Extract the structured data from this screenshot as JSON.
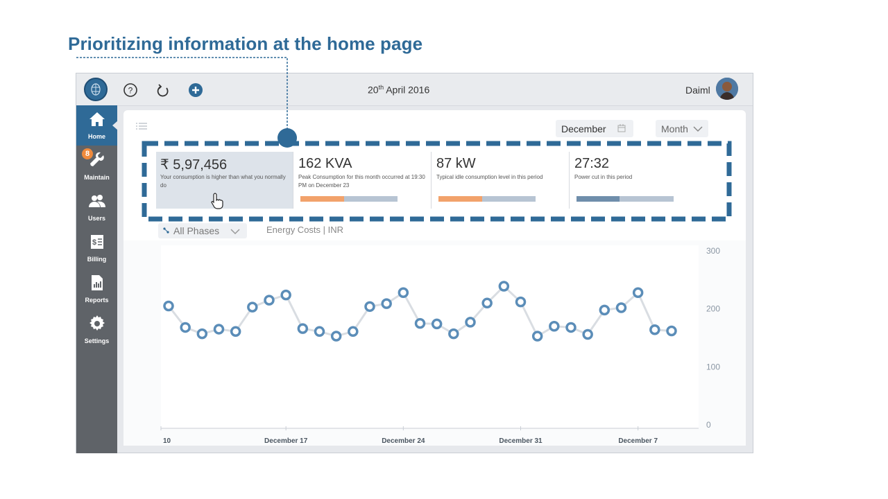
{
  "slide": {
    "title": "Prioritizing information at the home page"
  },
  "topbar": {
    "date_day": "20",
    "date_suffix": "th",
    "date_rest": " April 2016",
    "user_name": "Daimler"
  },
  "sidebar": {
    "items": [
      {
        "label": "Home",
        "icon": "home-icon",
        "active": true
      },
      {
        "label": "Maintain",
        "icon": "wrench-icon",
        "badge": "8"
      },
      {
        "label": "Users",
        "icon": "users-icon"
      },
      {
        "label": "Billing",
        "icon": "billing-icon"
      },
      {
        "label": "Reports",
        "icon": "reports-icon"
      },
      {
        "label": "Settings",
        "icon": "gear-icon"
      }
    ]
  },
  "filters": {
    "month": "December",
    "period": "Month",
    "phases": "All Phases"
  },
  "kpis": [
    {
      "value": "₹  5,97,456",
      "desc": "Your consumption is higher than what you normally do",
      "progress": null
    },
    {
      "value": "162 KVA",
      "desc": "Peak Consumption for this month occurred at 19:30 PM on December 23",
      "progress": 0.45,
      "color": "#f2a26b"
    },
    {
      "value": "87 kW",
      "desc": "Typical idle consumption level in this period",
      "progress": 0.45,
      "color": "#f2a26b"
    },
    {
      "value": "27:32",
      "desc": "Power cut in this period",
      "progress": 0.44,
      "color": "#6f8eab"
    }
  ],
  "chart_label": "Energy Costs | INR",
  "colors": {
    "accent": "#2f6a97",
    "sidebar": "#5f6368",
    "marker": "#5b8db8",
    "line": "#d9dde2",
    "callout": "#2f6a97"
  },
  "chart_data": {
    "type": "line",
    "title": "",
    "x_ticks": [
      "10",
      "December 17",
      "December 24",
      "December 31",
      "December 7"
    ],
    "y_ticks": [
      0,
      100,
      200,
      300
    ],
    "ylim": [
      0,
      300
    ],
    "values": [
      205,
      168,
      157,
      165,
      161,
      203,
      215,
      224,
      166,
      161,
      153,
      161,
      204,
      209,
      228,
      175,
      174,
      157,
      177,
      210,
      239,
      212,
      153,
      170,
      168,
      156,
      198,
      202,
      228,
      164,
      162
    ],
    "axis": "right",
    "grid": false
  }
}
